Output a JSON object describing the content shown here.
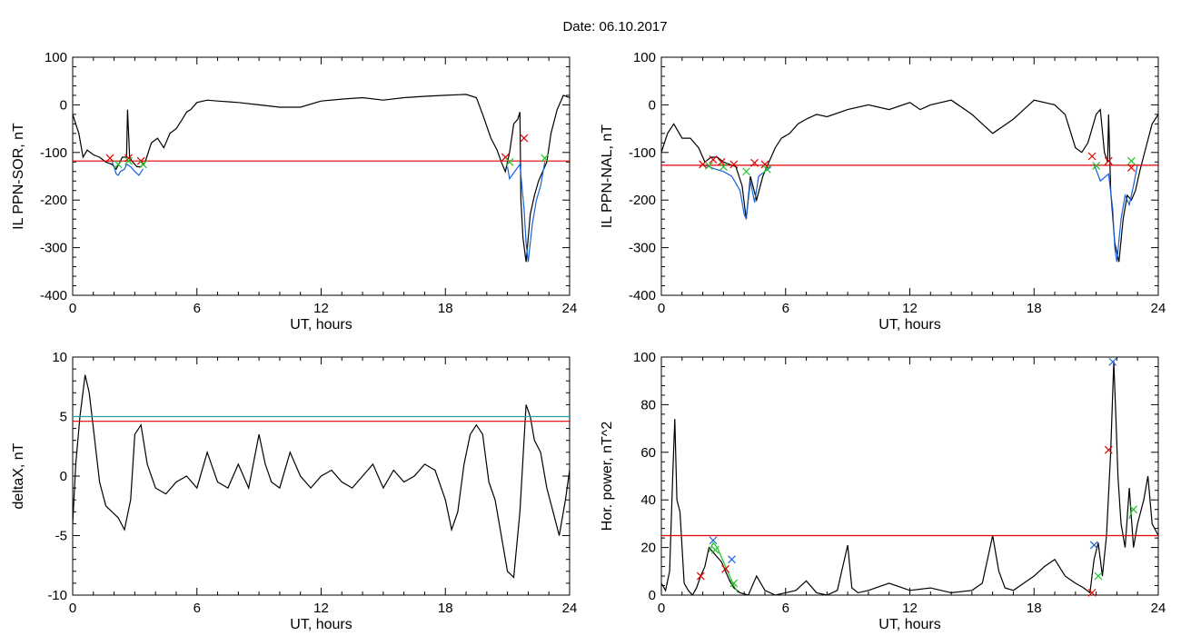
{
  "title": "Date:  06.10.2017",
  "colors": {
    "black": "#000000",
    "red": "#e00000",
    "blue": "#1560d8",
    "green": "#22c02a",
    "teal": "#2aa0a0"
  },
  "chart_data": [
    {
      "id": "panel-1",
      "type": "line",
      "xlabel": "UT, hours",
      "ylabel": "IL PPN-SOR, nT",
      "xlim": [
        0,
        24
      ],
      "ylim": [
        -400,
        100
      ],
      "xticks": [
        0,
        6,
        12,
        18,
        24
      ],
      "yticks": [
        -400,
        -300,
        -200,
        -100,
        0,
        100
      ],
      "series": [
        {
          "color": "black",
          "x": [
            0,
            0.3,
            0.5,
            0.7,
            1.0,
            1.3,
            1.6,
            1.9,
            2.1,
            2.4,
            2.6,
            2.65,
            2.75,
            2.9,
            3.1,
            3.3,
            3.5,
            3.8,
            4.1,
            4.4,
            4.7,
            5.0,
            5.3,
            5.5,
            5.7,
            6.0,
            6.5,
            7,
            8,
            9,
            10,
            11,
            12,
            13,
            14,
            15,
            16,
            17,
            18,
            19,
            19.5,
            19.8,
            20.2,
            20.5,
            20.7,
            20.9,
            21.1,
            21.3,
            21.5,
            21.6,
            21.65,
            21.75,
            21.9,
            22.1,
            22.3,
            22.5,
            22.7,
            22.9,
            23.1,
            23.4,
            23.7,
            24
          ],
          "y": [
            -20,
            -60,
            -110,
            -95,
            -105,
            -110,
            -120,
            -125,
            -135,
            -110,
            -110,
            -10,
            -110,
            -120,
            -130,
            -130,
            -120,
            -80,
            -70,
            -90,
            -60,
            -50,
            -30,
            -15,
            -10,
            5,
            10,
            8,
            5,
            0,
            -5,
            -5,
            8,
            12,
            15,
            10,
            15,
            18,
            20,
            22,
            15,
            -20,
            -70,
            -95,
            -120,
            -140,
            -100,
            -40,
            -30,
            -15,
            -200,
            -280,
            -330,
            -230,
            -190,
            -160,
            -140,
            -120,
            -60,
            -10,
            20,
            15
          ]
        },
        {
          "color": "blue",
          "x": [
            1.9,
            2.0,
            2.1,
            2.2,
            2.3,
            2.5,
            2.6,
            2.8,
            3.0,
            3.2,
            3.4
          ],
          "y": [
            -120,
            -130,
            -145,
            -148,
            -140,
            -135,
            -125,
            -130,
            -140,
            -148,
            -135
          ]
        },
        {
          "color": "blue",
          "x": [
            21.0,
            21.1,
            21.6,
            21.8,
            21.9,
            22.0,
            22.2,
            22.4,
            22.6,
            22.8
          ],
          "y": [
            -130,
            -155,
            -125,
            -220,
            -290,
            -330,
            -250,
            -200,
            -170,
            -120
          ]
        },
        {
          "color": "red",
          "x": [
            0,
            24
          ],
          "y": [
            -118,
            -118
          ]
        }
      ],
      "markers": [
        {
          "color": "red",
          "x": [
            1.8,
            2.7,
            3.3,
            20.9,
            21.8
          ],
          "y": [
            -112,
            -112,
            -118,
            -110,
            -70
          ]
        },
        {
          "color": "green",
          "x": [
            2.2,
            2.7,
            3.4,
            21.1,
            22.8
          ],
          "y": [
            -125,
            -118,
            -125,
            -120,
            -112
          ]
        }
      ]
    },
    {
      "id": "panel-2",
      "type": "line",
      "xlabel": "UT, hours",
      "ylabel": "IL PPN-NAL, nT",
      "xlim": [
        0,
        24
      ],
      "ylim": [
        -400,
        100
      ],
      "xticks": [
        0,
        6,
        12,
        18,
        24
      ],
      "yticks": [
        -400,
        -300,
        -200,
        -100,
        0,
        100
      ],
      "series": [
        {
          "color": "black",
          "x": [
            0,
            0.3,
            0.6,
            1.0,
            1.4,
            1.8,
            2.1,
            2.4,
            2.7,
            3.0,
            3.3,
            3.6,
            3.9,
            4.1,
            4.3,
            4.6,
            4.9,
            5.2,
            5.5,
            5.8,
            6.2,
            6.6,
            7,
            7.5,
            8,
            9,
            10,
            11,
            12,
            12.5,
            13,
            14,
            15,
            15.5,
            16,
            16.5,
            17,
            18,
            19,
            19.5,
            20,
            20.3,
            20.6,
            20.8,
            21.0,
            21.2,
            21.4,
            21.55,
            21.6,
            21.7,
            21.9,
            22.1,
            22.3,
            22.5,
            22.7,
            22.9,
            23.1,
            23.4,
            23.7,
            24
          ],
          "y": [
            -100,
            -60,
            -40,
            -70,
            -70,
            -90,
            -120,
            -110,
            -110,
            -120,
            -125,
            -130,
            -170,
            -240,
            -150,
            -200,
            -150,
            -120,
            -90,
            -70,
            -60,
            -40,
            -30,
            -20,
            -25,
            -10,
            0,
            -10,
            5,
            -10,
            0,
            10,
            -20,
            -40,
            -60,
            -45,
            -30,
            10,
            0,
            -20,
            -90,
            -100,
            -80,
            -50,
            -20,
            -10,
            -100,
            -120,
            -20,
            -180,
            -290,
            -330,
            -240,
            -190,
            -200,
            -180,
            -140,
            -90,
            -40,
            -20
          ]
        },
        {
          "color": "blue",
          "x": [
            2.0,
            2.3,
            2.6,
            3.0,
            3.4,
            3.8,
            4.0,
            4.1,
            4.3,
            4.5,
            4.7,
            5.0,
            5.3
          ],
          "y": [
            -125,
            -130,
            -135,
            -140,
            -150,
            -180,
            -230,
            -240,
            -160,
            -205,
            -150,
            -140,
            -130
          ]
        },
        {
          "color": "blue",
          "x": [
            20.9,
            21.2,
            21.6,
            21.8,
            21.9,
            22.0,
            22.2,
            22.4,
            22.6,
            22.8,
            23.0
          ],
          "y": [
            -125,
            -160,
            -145,
            -220,
            -300,
            -330,
            -240,
            -190,
            -210,
            -170,
            -125
          ]
        },
        {
          "color": "red",
          "x": [
            0,
            24
          ],
          "y": [
            -127,
            -127
          ]
        }
      ],
      "markers": [
        {
          "color": "red",
          "x": [
            2.0,
            2.5,
            2.9,
            3.5,
            4.5,
            5.0,
            20.8,
            21.6,
            22.7
          ],
          "y": [
            -125,
            -115,
            -120,
            -125,
            -122,
            -125,
            -108,
            -118,
            -132
          ]
        },
        {
          "color": "green",
          "x": [
            2.3,
            3.0,
            4.1,
            5.1,
            21.0,
            22.7
          ],
          "y": [
            -128,
            -130,
            -140,
            -135,
            -128,
            -118
          ]
        }
      ]
    },
    {
      "id": "panel-3",
      "type": "line",
      "xlabel": "UT, hours",
      "ylabel": "deltaX, nT",
      "xlim": [
        0,
        24
      ],
      "ylim": [
        -10,
        10
      ],
      "xticks": [
        0,
        6,
        12,
        18,
        24
      ],
      "yticks": [
        -10,
        -5,
        0,
        5,
        10
      ],
      "series": [
        {
          "color": "black",
          "x": [
            0,
            0.15,
            0.35,
            0.6,
            0.8,
            1.0,
            1.3,
            1.6,
            1.9,
            2.2,
            2.5,
            2.8,
            3.0,
            3.3,
            3.6,
            4.0,
            4.5,
            5.0,
            5.5,
            6.0,
            6.5,
            7,
            7.5,
            8,
            8.5,
            9.0,
            9.3,
            9.6,
            10,
            10.5,
            11,
            11.5,
            12,
            12.5,
            13,
            13.5,
            14,
            14.5,
            15,
            15.5,
            16,
            16.5,
            17,
            17.5,
            18,
            18.3,
            18.6,
            18.9,
            19.2,
            19.5,
            19.8,
            20.1,
            20.4,
            20.7,
            21.0,
            21.3,
            21.6,
            21.9,
            22.1,
            22.3,
            22.6,
            22.9,
            23.2,
            23.5,
            23.8,
            24
          ],
          "y": [
            -4,
            1,
            5,
            8.5,
            7,
            4,
            -0.5,
            -2.5,
            -3,
            -3.5,
            -4.5,
            -2,
            3.5,
            4.3,
            1,
            -1,
            -1.5,
            -0.5,
            0,
            -1,
            2,
            -0.5,
            -1,
            1,
            -1,
            3.5,
            1,
            -0.5,
            -1,
            2,
            0,
            -1,
            0,
            0.5,
            -0.5,
            -1,
            0,
            1,
            -1,
            0.5,
            -0.5,
            0,
            1,
            0.5,
            -2,
            -4.5,
            -3,
            1,
            3.5,
            4.3,
            3.5,
            -0.5,
            -2,
            -5,
            -8,
            -8.5,
            -3,
            6,
            5,
            3,
            2,
            -1,
            -3,
            -5,
            -2,
            0.5
          ]
        },
        {
          "color": "teal",
          "x": [
            0,
            24
          ],
          "y": [
            5,
            5
          ]
        },
        {
          "color": "red",
          "x": [
            0,
            24
          ],
          "y": [
            4.6,
            4.6
          ]
        }
      ],
      "markers": []
    },
    {
      "id": "panel-4",
      "type": "line",
      "xlabel": "UT, hours",
      "ylabel": "Hor. power, nT^2",
      "xlim": [
        0,
        24
      ],
      "ylim": [
        0,
        100
      ],
      "xticks": [
        0,
        6,
        12,
        18,
        24
      ],
      "yticks": [
        0,
        20,
        40,
        60,
        80,
        100
      ],
      "series": [
        {
          "color": "black",
          "x": [
            0,
            0.2,
            0.4,
            0.55,
            0.65,
            0.75,
            0.9,
            1.1,
            1.3,
            1.5,
            1.7,
            1.9,
            2.1,
            2.3,
            2.5,
            2.7,
            2.9,
            3.1,
            3.3,
            3.5,
            3.8,
            4.2,
            4.6,
            5,
            5.5,
            6,
            6.5,
            7,
            7.5,
            8,
            8.5,
            9.0,
            9.2,
            9.5,
            10,
            11,
            12,
            13,
            14,
            15,
            15.5,
            16,
            16.3,
            16.6,
            17,
            17.5,
            18,
            18.5,
            19,
            19.5,
            20,
            20.4,
            20.7,
            20.9,
            21.1,
            21.3,
            21.5,
            21.7,
            21.85,
            21.95,
            22.05,
            22.2,
            22.4,
            22.6,
            22.8,
            23.0,
            23.3,
            23.5,
            23.7,
            24
          ],
          "y": [
            5,
            2,
            10,
            50,
            74,
            40,
            35,
            5,
            2,
            0,
            3,
            8,
            12,
            20,
            18,
            16,
            14,
            10,
            6,
            3,
            1,
            0,
            8,
            2,
            0,
            1,
            2,
            6,
            1,
            0,
            2,
            21,
            3,
            1,
            2,
            5,
            2,
            3,
            1,
            2,
            5,
            25,
            10,
            3,
            2,
            5,
            8,
            12,
            15,
            8,
            5,
            3,
            1,
            15,
            22,
            8,
            25,
            60,
            98,
            75,
            50,
            30,
            20,
            45,
            20,
            30,
            40,
            50,
            30,
            25
          ]
        },
        {
          "color": "green",
          "x": [
            2.3,
            2.5,
            2.7,
            2.9,
            3.1,
            3.3,
            3.5,
            3.7
          ],
          "y": [
            18,
            22,
            20,
            16,
            12,
            8,
            4,
            1
          ]
        },
        {
          "color": "green",
          "x": [
            22.6,
            22.7,
            22.8
          ],
          "y": [
            32,
            35,
            36
          ]
        },
        {
          "color": "red",
          "x": [
            0,
            24
          ],
          "y": [
            25,
            25
          ]
        }
      ],
      "markers": [
        {
          "color": "red",
          "x": [
            1.9,
            3.1,
            20.8,
            21.6
          ],
          "y": [
            8,
            11,
            1,
            61
          ]
        },
        {
          "color": "blue",
          "x": [
            2.5,
            3.4,
            20.9,
            21.8
          ],
          "y": [
            23,
            15,
            21,
            98
          ]
        },
        {
          "color": "green",
          "x": [
            2.6,
            3.5,
            21.1,
            22.8
          ],
          "y": [
            19,
            5,
            8,
            36
          ]
        }
      ]
    }
  ]
}
